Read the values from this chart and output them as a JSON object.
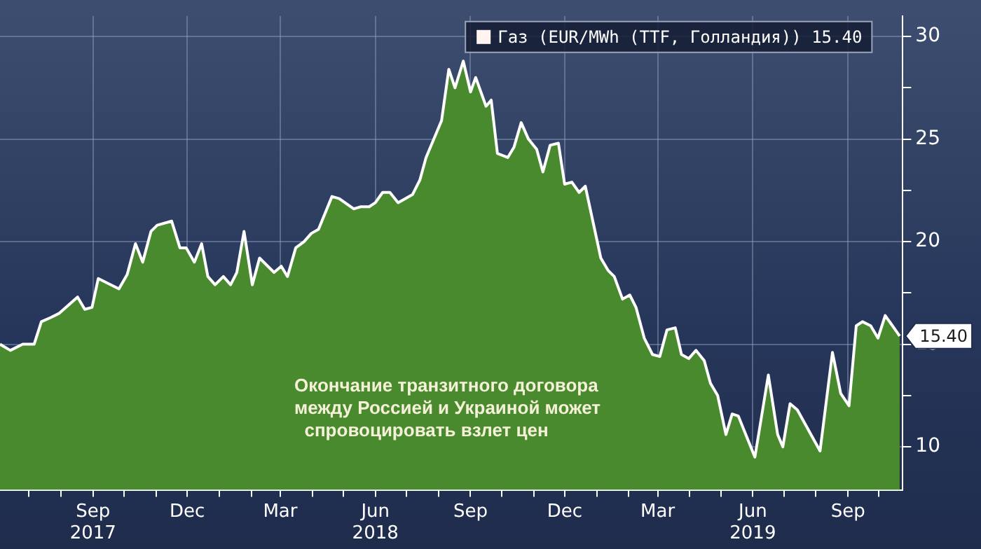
{
  "chart_data": {
    "type": "area",
    "x": [
      "2017-06-03",
      "2017-06-13",
      "2017-06-25",
      "2017-07-06",
      "2017-07-13",
      "2017-07-22",
      "2017-07-30",
      "2017-08-17",
      "2017-08-24",
      "2017-08-31",
      "2017-09-06",
      "2017-09-26",
      "2017-10-04",
      "2017-10-12",
      "2017-10-19",
      "2017-10-27",
      "2017-11-02",
      "2017-11-16",
      "2017-11-24",
      "2017-11-30",
      "2017-12-08",
      "2017-12-15",
      "2017-12-21",
      "2017-12-28",
      "2018-01-05",
      "2018-01-12",
      "2018-01-18",
      "2018-01-25",
      "2018-02-02",
      "2018-02-09",
      "2018-02-23",
      "2018-03-02",
      "2018-03-08",
      "2018-03-16",
      "2018-03-24",
      "2018-03-31",
      "2018-04-07",
      "2018-04-20",
      "2018-04-27",
      "2018-05-11",
      "2018-05-18",
      "2018-05-26",
      "2018-06-01",
      "2018-06-08",
      "2018-06-15",
      "2018-06-23",
      "2018-07-07",
      "2018-07-14",
      "2018-07-20",
      "2018-08-04",
      "2018-08-11",
      "2018-08-17",
      "2018-08-25",
      "2018-09-01",
      "2018-09-06",
      "2018-09-16",
      "2018-09-21",
      "2018-09-27",
      "2018-10-07",
      "2018-10-13",
      "2018-10-20",
      "2018-10-27",
      "2018-11-04",
      "2018-11-10",
      "2018-11-17",
      "2018-11-25",
      "2018-12-01",
      "2018-12-08",
      "2018-12-15",
      "2018-12-21",
      "2019-01-05",
      "2019-01-12",
      "2019-01-18",
      "2019-01-26",
      "2019-02-02",
      "2019-02-08",
      "2019-02-16",
      "2019-02-24",
      "2019-03-03",
      "2019-03-10",
      "2019-03-18",
      "2019-03-24",
      "2019-03-31",
      "2019-04-07",
      "2019-04-15",
      "2019-04-21",
      "2019-04-28",
      "2019-05-06",
      "2019-05-12",
      "2019-05-18",
      "2019-05-26",
      "2019-06-03",
      "2019-06-16",
      "2019-06-25",
      "2019-06-30",
      "2019-07-07",
      "2019-07-14",
      "2019-08-05",
      "2019-08-17",
      "2019-08-25",
      "2019-09-02",
      "2019-09-09",
      "2019-09-15",
      "2019-09-23",
      "2019-09-30",
      "2019-10-07",
      "2019-10-21"
    ],
    "series": [
      {
        "name": "Газ (EUR/MWh (TTF, Голландия)) 15.40",
        "color": "#4a8a2e",
        "values": [
          15.0,
          14.7,
          15.0,
          15.0,
          16.1,
          16.3,
          16.5,
          17.3,
          16.7,
          16.8,
          18.2,
          17.7,
          18.4,
          19.9,
          19.0,
          20.5,
          20.8,
          21.0,
          19.7,
          19.7,
          19.0,
          19.9,
          18.3,
          17.9,
          18.3,
          17.9,
          18.5,
          20.5,
          17.9,
          19.2,
          18.5,
          18.8,
          18.3,
          19.7,
          20.0,
          20.4,
          20.6,
          22.2,
          22.1,
          21.6,
          21.7,
          21.7,
          21.9,
          22.4,
          22.4,
          21.9,
          22.3,
          23.0,
          24.1,
          25.9,
          28.4,
          27.5,
          28.8,
          27.3,
          28.0,
          26.6,
          26.9,
          24.3,
          24.1,
          24.6,
          25.8,
          25.0,
          24.5,
          23.4,
          24.7,
          24.8,
          22.8,
          22.9,
          22.4,
          22.7,
          19.2,
          18.6,
          18.3,
          17.2,
          17.4,
          16.8,
          15.3,
          14.5,
          14.4,
          15.7,
          15.8,
          14.5,
          14.3,
          14.7,
          14.2,
          13.1,
          12.5,
          10.6,
          11.6,
          11.5,
          10.5,
          9.5,
          13.5,
          10.6,
          10.0,
          12.1,
          11.8,
          9.8,
          14.6,
          12.6,
          12.0,
          15.9,
          16.1,
          15.9,
          15.3,
          16.4,
          15.4
        ],
        "value_labels": [
          null,
          null,
          null,
          null,
          null,
          null,
          null,
          null,
          null,
          null,
          null,
          null,
          null,
          null,
          null,
          null,
          null,
          null,
          null,
          null,
          null,
          null,
          null,
          null,
          null,
          null,
          null,
          null,
          null,
          null,
          null,
          null,
          null,
          null,
          null,
          null,
          null,
          null,
          null,
          null,
          null,
          null,
          null,
          null,
          null,
          null,
          null,
          null,
          null,
          null,
          null,
          null,
          null,
          null,
          null,
          null,
          null,
          null,
          null,
          null,
          null,
          null,
          null,
          null,
          null,
          null,
          null,
          null,
          null,
          null,
          null,
          null,
          null,
          null,
          null,
          null,
          null,
          null,
          null,
          null,
          null,
          null,
          null,
          null,
          null,
          null,
          null,
          null,
          null,
          null,
          null,
          null,
          null,
          null,
          null,
          null,
          null,
          null,
          null,
          null,
          null,
          null,
          null,
          null,
          null,
          null,
          "15.40"
        ]
      }
    ],
    "xlim": [
      "2017-06-03",
      "2019-10-24"
    ],
    "xticks": [
      {
        "value": "2017-07-01",
        "label": null
      },
      {
        "value": "2017-08-01",
        "label": null
      },
      {
        "value": "2017-09-01",
        "label": "Sep\n2017"
      },
      {
        "value": "2017-10-01",
        "label": null
      },
      {
        "value": "2017-11-01",
        "label": null
      },
      {
        "value": "2017-12-01",
        "label": "Dec"
      },
      {
        "value": "2018-01-01",
        "label": null
      },
      {
        "value": "2018-02-01",
        "label": null
      },
      {
        "value": "2018-03-01",
        "label": "Mar"
      },
      {
        "value": "2018-04-01",
        "label": null
      },
      {
        "value": "2018-05-01",
        "label": null
      },
      {
        "value": "2018-06-01",
        "label": "Jun\n2018"
      },
      {
        "value": "2018-07-01",
        "label": null
      },
      {
        "value": "2018-08-01",
        "label": null
      },
      {
        "value": "2018-09-01",
        "label": "Sep"
      },
      {
        "value": "2018-10-01",
        "label": null
      },
      {
        "value": "2018-11-01",
        "label": null
      },
      {
        "value": "2018-12-01",
        "label": "Dec"
      },
      {
        "value": "2019-01-01",
        "label": null
      },
      {
        "value": "2019-02-01",
        "label": null
      },
      {
        "value": "2019-03-01",
        "label": "Mar"
      },
      {
        "value": "2019-04-01",
        "label": null
      },
      {
        "value": "2019-05-01",
        "label": null
      },
      {
        "value": "2019-06-01",
        "label": "Jun\n2019"
      },
      {
        "value": "2019-07-01",
        "label": null
      },
      {
        "value": "2019-08-01",
        "label": null
      },
      {
        "value": "2019-09-01",
        "label": "Sep"
      },
      {
        "value": "2019-10-01",
        "label": null
      }
    ],
    "ylim": [
      7.9,
      31
    ],
    "yticks": [
      10,
      {
        "value": 12.5,
        "label": null
      },
      15,
      {
        "value": 17.5,
        "label": null
      },
      20,
      {
        "value": 22.5,
        "label": null
      },
      25,
      {
        "value": 27.5,
        "label": null
      },
      30
    ],
    "grid": true,
    "legend": "top right",
    "marker": "none",
    "line_style": "solid",
    "annotations": [
      "Окончание транзитного договора\nмежду Россией и Украиной может\n  спровоцировать взлет цен"
    ]
  }
}
